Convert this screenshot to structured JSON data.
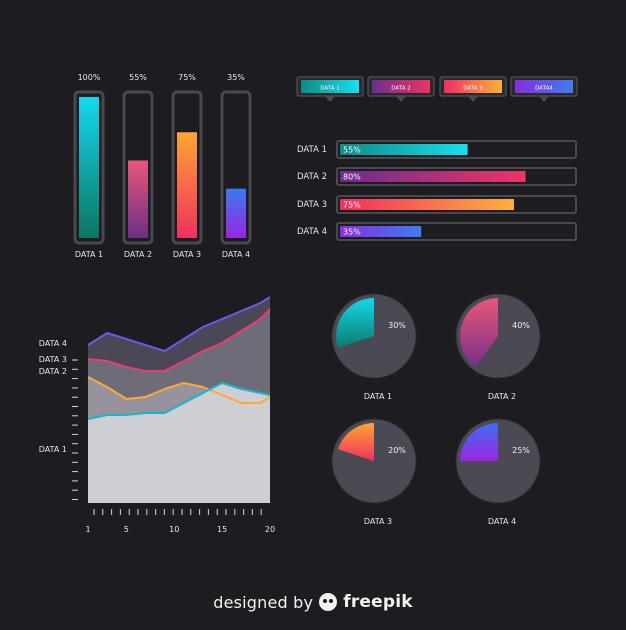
{
  "chart_data": [
    {
      "type": "bar",
      "orientation": "vertical",
      "categories": [
        "DATA 1",
        "DATA 2",
        "DATA 3",
        "DATA 4"
      ],
      "values": [
        100,
        55,
        75,
        35
      ],
      "value_labels": [
        "100%",
        "55%",
        "75%",
        "35%"
      ],
      "ylim": [
        0,
        100
      ],
      "gradients": [
        [
          "#14d7f0",
          "#0d7563"
        ],
        [
          "#e8577a",
          "#6e2f86"
        ],
        [
          "#ffa534",
          "#f0305e"
        ],
        [
          "#3a7af0",
          "#9a26e2"
        ]
      ]
    },
    {
      "type": "bar",
      "orientation": "horizontal",
      "categories": [
        "DATA 1",
        "DATA 2",
        "DATA 3",
        "DATA 4"
      ],
      "values": [
        55,
        80,
        75,
        35
      ],
      "value_labels": [
        "55%",
        "80%",
        "75%",
        "35%"
      ],
      "xlim": [
        0,
        100
      ],
      "legend": [
        "DATA 1",
        "DATA 2",
        "DATA 3",
        "DATA4"
      ],
      "gradients": [
        [
          "#0f8a84",
          "#16e0f0"
        ],
        [
          "#6a2e8c",
          "#ef3366"
        ],
        [
          "#f02e62",
          "#ffb03a"
        ],
        [
          "#8a2ce0",
          "#3d7df0"
        ]
      ]
    },
    {
      "type": "area",
      "x": [
        1,
        3,
        5,
        7,
        9,
        11,
        13,
        15,
        17,
        19,
        20
      ],
      "xticks": [
        1,
        5,
        10,
        15,
        20
      ],
      "xlim": [
        1,
        20
      ],
      "ylim": [
        0,
        100
      ],
      "series": [
        {
          "name": "DATA 4",
          "values": [
            79,
            85,
            82,
            79,
            76,
            82,
            88,
            92,
            96,
            100,
            103
          ],
          "color": "#6a5ae8",
          "fill": "#4a4756"
        },
        {
          "name": "DATA 3",
          "values": [
            72,
            71,
            68,
            66,
            66,
            71,
            76,
            80,
            86,
            92,
            97
          ],
          "color": "#ee3a74",
          "fill": "#6f6c79"
        },
        {
          "name": "DATA 2",
          "values": [
            63,
            58,
            52,
            53,
            57,
            60,
            58,
            54,
            50,
            50,
            53
          ],
          "color": "#ffa834",
          "fill": "#96939e"
        },
        {
          "name": "DATA 1",
          "values": [
            42,
            44,
            44,
            45,
            45,
            50,
            55,
            60,
            57,
            55,
            54
          ],
          "color": "#14b6c8",
          "fill": "#cfced5"
        }
      ],
      "ylabels": [
        "DATA 4",
        "DATA 3",
        "DATA 2",
        "DATA 1"
      ],
      "ylabel_values": [
        80,
        72,
        66,
        27
      ]
    },
    {
      "type": "pie",
      "charts": [
        {
          "label": "DATA 1",
          "value": 30,
          "value_label": "30%",
          "gradient": [
            "#14d7e8",
            "#0e7b6e"
          ]
        },
        {
          "label": "DATA 2",
          "value": 40,
          "value_label": "40%",
          "gradient": [
            "#e8577a",
            "#7a2f8a"
          ]
        },
        {
          "label": "DATA 3",
          "value": 20,
          "value_label": "20%",
          "gradient": [
            "#ffa534",
            "#ef305f"
          ]
        },
        {
          "label": "DATA 4",
          "value": 25,
          "value_label": "25%",
          "gradient": [
            "#3d6ff0",
            "#9b25e0"
          ]
        }
      ]
    }
  ],
  "credit": {
    "pre": "designed by",
    "brand": "freepik"
  }
}
